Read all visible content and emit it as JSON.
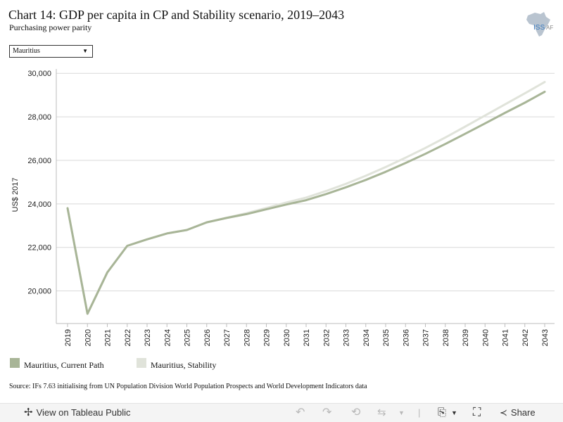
{
  "header": {
    "title": "Chart 14: GDP per capita in CP and Stability scenario, 2019–2043",
    "subtitle": "Purchasing power parity",
    "logo_text": "ISS",
    "logo_text_suffix": "AF"
  },
  "filter": {
    "selected": "Mauritius"
  },
  "chart_data": {
    "type": "line",
    "title": "Chart 14: GDP per capita in CP and Stability scenario, 2019–2043",
    "subtitle": "Purchasing power parity",
    "xlabel": "",
    "ylabel": "US$ 2017",
    "ylim": [
      18500,
      30200
    ],
    "yticks": [
      20000,
      22000,
      24000,
      26000,
      28000,
      30000
    ],
    "ytick_labels": [
      "20,000",
      "22,000",
      "24,000",
      "26,000",
      "28,000",
      "30,000"
    ],
    "x": [
      "2019",
      "2020",
      "2021",
      "2022",
      "2023",
      "2024",
      "2025",
      "2026",
      "2027",
      "2028",
      "2029",
      "2030",
      "2031",
      "2032",
      "2033",
      "2034",
      "2035",
      "2036",
      "2037",
      "2038",
      "2039",
      "2040",
      "2041",
      "2042",
      "2043"
    ],
    "grid": true,
    "legend_position": "bottom-left",
    "series": [
      {
        "name": "Mauritius, Current Path",
        "color": "#a8b597",
        "values": [
          23800,
          18950,
          20850,
          22070,
          22370,
          22640,
          22800,
          23150,
          23350,
          23530,
          23750,
          23970,
          24170,
          24450,
          24760,
          25100,
          25470,
          25880,
          26300,
          26750,
          27220,
          27700,
          28180,
          28650,
          29150
        ]
      },
      {
        "name": "Mauritius, Stability",
        "color": "#e0e3da",
        "values": [
          23800,
          18950,
          20850,
          22070,
          22370,
          22640,
          22800,
          23150,
          23360,
          23570,
          23810,
          24060,
          24290,
          24590,
          24920,
          25290,
          25690,
          26120,
          26570,
          27050,
          27550,
          28060,
          28570,
          29080,
          29600
        ]
      }
    ]
  },
  "source": "Source: IFs 7.63 initialising from UN Population Division World Population Prospects and World Development Indicators data",
  "toolbar": {
    "view_label": "View on Tableau Public",
    "share_label": "Share"
  }
}
